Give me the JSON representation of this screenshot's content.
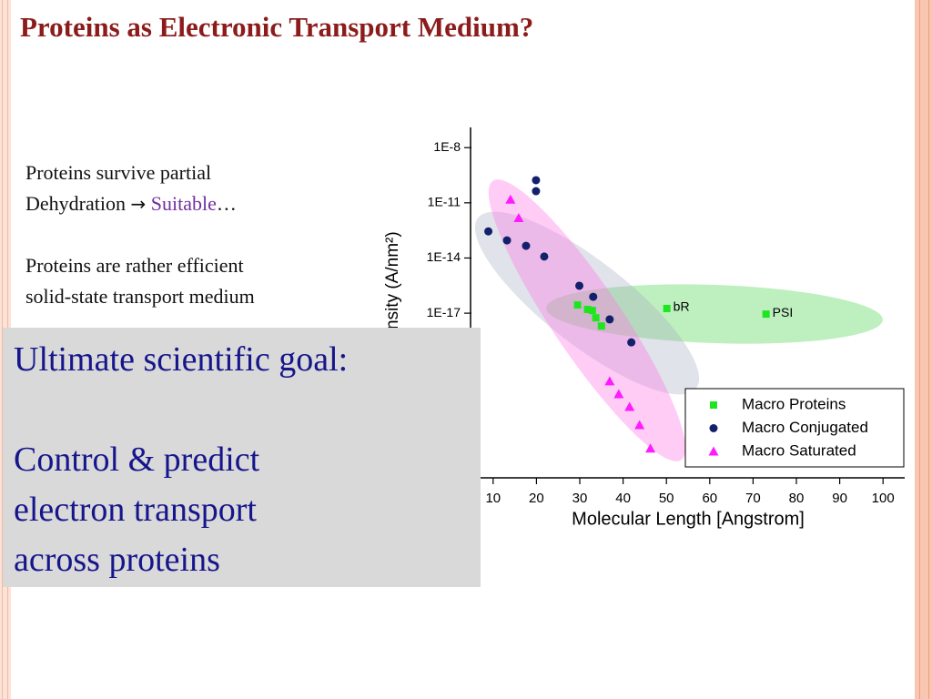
{
  "title": "Proteins as Electronic Transport Medium?",
  "points": [
    {
      "line1": "Proteins survive partial",
      "line2": "Dehydration",
      "arrow": "→",
      "highlight": "Suitable",
      "tail": "…"
    },
    {
      "line1": "Proteins are rather efficient",
      "line2": "solid-state transport medium"
    }
  ],
  "goal": {
    "heading": "Ultimate scientific goal:",
    "lines": [
      "Control & predict",
      "electron transport",
      "across proteins"
    ]
  },
  "chart_data": {
    "type": "scatter",
    "xlabel": "Molecular Length [Angstrom]",
    "ylabel": "nsity (A/nm²)",
    "xlim": [
      5,
      105
    ],
    "xticks": [
      10,
      20,
      30,
      40,
      50,
      60,
      70,
      80,
      90,
      100
    ],
    "ylim": [
      1e-26,
      1e-07
    ],
    "ylog": true,
    "yticks": [
      {
        "value": 1e-08,
        "label": "1E-8"
      },
      {
        "value": 1e-11,
        "label": "1E-11"
      },
      {
        "value": 1e-14,
        "label": "1E-14"
      },
      {
        "value": 1e-17,
        "label": "1E-17"
      }
    ],
    "legend": "lower right",
    "annotations": [
      "bR",
      "PSI"
    ],
    "series": [
      {
        "name": "Macro Proteins",
        "color": "#1ee61e",
        "marker": "square",
        "x": [
          29.5,
          31.8,
          32.9,
          33.7,
          35.0,
          50.1,
          73.0
        ],
        "values": [
          2.8e-17,
          1.6e-17,
          1.4e-17,
          5.6e-18,
          2e-18,
          1.8e-17,
          8.9e-18
        ]
      },
      {
        "name": "Macro Conjugated",
        "color": "#13206b",
        "marker": "circle",
        "x": [
          8.9,
          13.2,
          17.6,
          19.9,
          19.9,
          21.8,
          29.9,
          33.1,
          36.9,
          41.9
        ],
        "values": [
          2.8e-13,
          9.1e-14,
          4.6e-14,
          1.7e-10,
          4.3e-11,
          1.2e-14,
          3.1e-16,
          7.8e-17,
          4.6e-18,
          2.6e-19
        ]
      },
      {
        "name": "Macro Saturated",
        "color": "#ff1aff",
        "marker": "triangle",
        "x": [
          14.0,
          15.9,
          36.9,
          39.0,
          41.5,
          43.8,
          46.3
        ],
        "values": [
          1.5e-11,
          1.5e-12,
          2e-21,
          4e-22,
          8.1e-23,
          8.3e-24,
          4.4e-25
        ]
      }
    ]
  }
}
